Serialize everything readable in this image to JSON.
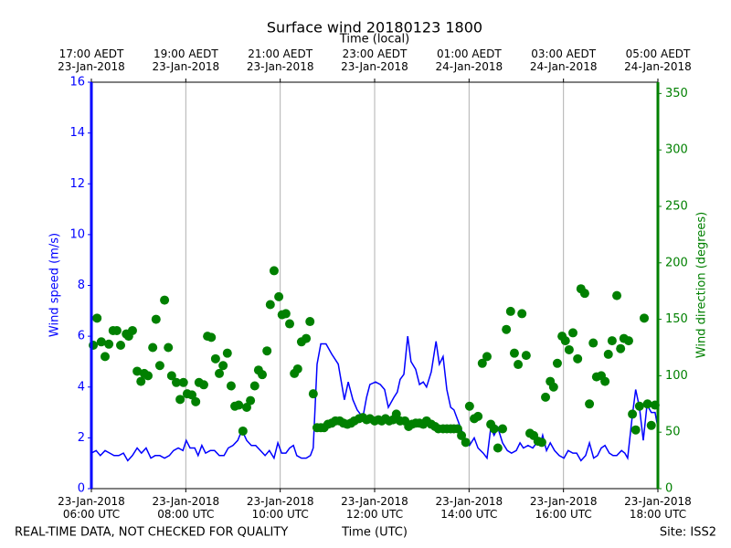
{
  "chart_data": {
    "type": "line",
    "title": "Surface wind 20180123 1800",
    "xlabel": "Time (UTC)",
    "x2label": "Time (local)",
    "ylabel": "Wind speed (m/s)",
    "y2label": "Wind direction (degrees)",
    "footer_left": "REAL-TIME DATA, NOT CHECKED FOR QUALITY",
    "footer_right": "Site: ISS2",
    "xlim": [
      6,
      18
    ],
    "xticks": [
      {
        "value": 6,
        "label": "23-Jan-2018\n06:00 UTC"
      },
      {
        "value": 8,
        "label": "23-Jan-2018\n08:00 UTC"
      },
      {
        "value": 10,
        "label": "23-Jan-2018\n10:00 UTC"
      },
      {
        "value": 12,
        "label": "23-Jan-2018\n12:00 UTC"
      },
      {
        "value": 14,
        "label": "23-Jan-2018\n14:00 UTC"
      },
      {
        "value": 16,
        "label": "23-Jan-2018\n16:00 UTC"
      },
      {
        "value": 18,
        "label": "23-Jan-2018\n18:00 UTC"
      }
    ],
    "x2ticks": [
      {
        "value": 6,
        "label": "17:00 AEDT\n23-Jan-2018"
      },
      {
        "value": 8,
        "label": "19:00 AEDT\n23-Jan-2018"
      },
      {
        "value": 10,
        "label": "21:00 AEDT\n23-Jan-2018"
      },
      {
        "value": 12,
        "label": "23:00 AEDT\n23-Jan-2018"
      },
      {
        "value": 14,
        "label": "01:00 AEDT\n24-Jan-2018"
      },
      {
        "value": 16,
        "label": "03:00 AEDT\n24-Jan-2018"
      },
      {
        "value": 18,
        "label": "05:00 AEDT\n24-Jan-2018"
      }
    ],
    "ylim": [
      0,
      16
    ],
    "yticks": [
      0,
      2,
      4,
      6,
      8,
      10,
      12,
      14,
      16
    ],
    "y2lim": [
      0,
      360
    ],
    "y2ticks": [
      0,
      50,
      100,
      150,
      200,
      250,
      300,
      350
    ],
    "grid": "x",
    "series": [
      {
        "name": "Wind speed",
        "type": "line",
        "color": "#0000ff",
        "axis": "y",
        "x": [
          6.0,
          6.1,
          6.19,
          6.29,
          6.39,
          6.48,
          6.58,
          6.68,
          6.77,
          6.87,
          6.97,
          7.06,
          7.16,
          7.26,
          7.35,
          7.45,
          7.55,
          7.65,
          7.74,
          7.84,
          7.94,
          8.01,
          8.09,
          8.19,
          8.26,
          8.34,
          8.42,
          8.52,
          8.61,
          8.71,
          8.81,
          8.9,
          9.0,
          9.1,
          9.19,
          9.29,
          9.39,
          9.48,
          9.58,
          9.68,
          9.77,
          9.87,
          9.95,
          10.03,
          10.12,
          10.2,
          10.28,
          10.35,
          10.45,
          10.55,
          10.64,
          10.7,
          10.78,
          10.86,
          10.97,
          11.09,
          11.23,
          11.36,
          11.44,
          11.54,
          11.63,
          11.75,
          11.83,
          11.9,
          12.02,
          12.12,
          12.21,
          12.29,
          12.41,
          12.48,
          12.54,
          12.62,
          12.7,
          12.77,
          12.87,
          12.95,
          13.03,
          13.1,
          13.2,
          13.3,
          13.37,
          13.45,
          13.53,
          13.61,
          13.68,
          13.76,
          13.84,
          13.93,
          14.01,
          14.11,
          14.19,
          14.3,
          14.38,
          14.46,
          14.53,
          14.61,
          14.71,
          14.81,
          14.9,
          15.0,
          15.08,
          15.15,
          15.25,
          15.35,
          15.43,
          15.5,
          15.56,
          15.64,
          15.72,
          15.81,
          15.91,
          16.01,
          16.1,
          16.2,
          16.28,
          16.37,
          16.47,
          16.55,
          16.64,
          16.72,
          16.8,
          16.88,
          16.97,
          17.05,
          17.13,
          17.23,
          17.3,
          17.36,
          17.46,
          17.53,
          17.61,
          17.69,
          17.77,
          17.86,
          17.94,
          18.0
        ],
        "values": [
          1.4,
          1.5,
          1.3,
          1.5,
          1.4,
          1.3,
          1.3,
          1.4,
          1.1,
          1.3,
          1.6,
          1.4,
          1.6,
          1.2,
          1.3,
          1.3,
          1.2,
          1.3,
          1.5,
          1.6,
          1.5,
          1.9,
          1.6,
          1.6,
          1.3,
          1.7,
          1.4,
          1.5,
          1.5,
          1.3,
          1.3,
          1.6,
          1.7,
          1.9,
          2.3,
          1.9,
          1.7,
          1.7,
          1.5,
          1.3,
          1.5,
          1.2,
          1.8,
          1.4,
          1.4,
          1.6,
          1.7,
          1.3,
          1.2,
          1.2,
          1.3,
          1.6,
          4.9,
          5.7,
          5.7,
          5.3,
          4.9,
          3.5,
          4.2,
          3.5,
          3.1,
          2.8,
          3.6,
          4.1,
          4.2,
          4.1,
          3.9,
          3.2,
          3.6,
          3.8,
          4.3,
          4.5,
          6.0,
          5.0,
          4.7,
          4.1,
          4.2,
          4.0,
          4.6,
          5.8,
          4.9,
          5.2,
          3.9,
          3.2,
          3.1,
          2.7,
          2.3,
          1.9,
          1.7,
          2.0,
          1.6,
          1.4,
          1.2,
          2.4,
          2.1,
          2.4,
          1.8,
          1.5,
          1.4,
          1.5,
          1.8,
          1.6,
          1.7,
          1.6,
          1.8,
          1.7,
          2.1,
          1.5,
          1.8,
          1.5,
          1.3,
          1.2,
          1.5,
          1.4,
          1.4,
          1.1,
          1.3,
          1.8,
          1.2,
          1.3,
          1.6,
          1.7,
          1.4,
          1.3,
          1.3,
          1.5,
          1.4,
          1.2,
          2.9,
          3.9,
          3.2,
          1.9,
          3.3,
          3.0,
          3.0,
          2.4
        ]
      },
      {
        "name": "Wind direction",
        "type": "scatter",
        "color": "#008000",
        "axis": "y2",
        "x": [
          6.04,
          6.12,
          6.21,
          6.29,
          6.37,
          6.46,
          6.54,
          6.62,
          6.74,
          6.79,
          6.87,
          6.97,
          7.05,
          7.12,
          7.2,
          7.3,
          7.37,
          7.45,
          7.55,
          7.63,
          7.7,
          7.8,
          7.88,
          7.95,
          8.03,
          8.13,
          8.21,
          8.28,
          8.38,
          8.46,
          8.54,
          8.63,
          8.71,
          8.79,
          8.88,
          8.96,
          9.04,
          9.12,
          9.21,
          9.29,
          9.37,
          9.46,
          9.54,
          9.62,
          9.72,
          9.79,
          9.87,
          9.97,
          10.04,
          10.12,
          10.2,
          10.3,
          10.37,
          10.45,
          10.55,
          10.63,
          10.7,
          10.78,
          10.86,
          10.93,
          11.01,
          11.09,
          11.17,
          11.26,
          11.34,
          11.42,
          11.5,
          11.57,
          11.67,
          11.75,
          11.83,
          11.9,
          12.0,
          12.08,
          12.15,
          12.23,
          12.31,
          12.39,
          12.46,
          12.54,
          12.64,
          12.72,
          12.79,
          12.87,
          12.95,
          13.03,
          13.1,
          13.2,
          13.28,
          13.35,
          13.45,
          13.53,
          13.61,
          13.68,
          13.76,
          13.84,
          13.93,
          14.01,
          14.11,
          14.19,
          14.28,
          14.38,
          14.46,
          14.53,
          14.61,
          14.71,
          14.79,
          14.88,
          14.96,
          15.04,
          15.12,
          15.21,
          15.29,
          15.37,
          15.46,
          15.54,
          15.62,
          15.72,
          15.79,
          15.87,
          15.97,
          16.04,
          16.12,
          16.2,
          16.3,
          16.37,
          16.45,
          16.55,
          16.63,
          16.7,
          16.8,
          16.88,
          16.95,
          17.03,
          17.13,
          17.21,
          17.28,
          17.38,
          17.46,
          17.53,
          17.61,
          17.71,
          17.78,
          17.86,
          17.94
        ],
        "values": [
          127,
          151,
          130,
          117,
          128,
          140,
          140,
          127,
          137,
          135,
          140,
          104,
          95,
          102,
          100,
          125,
          150,
          109,
          167,
          125,
          100,
          94,
          79,
          94,
          84,
          83,
          77,
          94,
          92,
          135,
          134,
          115,
          102,
          109,
          120,
          91,
          73,
          74,
          51,
          72,
          78,
          91,
          105,
          101,
          122,
          163,
          193,
          170,
          154,
          155,
          146,
          102,
          106,
          130,
          133,
          148,
          84,
          54,
          54,
          54,
          57,
          58,
          60,
          60,
          58,
          57,
          58,
          60,
          62,
          63,
          61,
          62,
          60,
          61,
          60,
          62,
          60,
          61,
          66,
          60,
          60,
          55,
          57,
          58,
          58,
          57,
          60,
          57,
          55,
          53,
          53,
          53,
          53,
          53,
          53,
          47,
          41,
          73,
          62,
          64,
          111,
          117,
          57,
          53,
          36,
          53,
          141,
          157,
          120,
          110,
          155,
          118,
          49,
          47,
          42,
          41,
          81,
          95,
          90,
          111,
          135,
          131,
          123,
          138,
          115,
          177,
          173,
          75,
          129,
          99,
          100,
          95,
          119,
          131,
          171,
          124,
          133,
          131,
          66,
          52,
          73,
          151,
          75,
          56,
          74
        ]
      }
    ]
  }
}
